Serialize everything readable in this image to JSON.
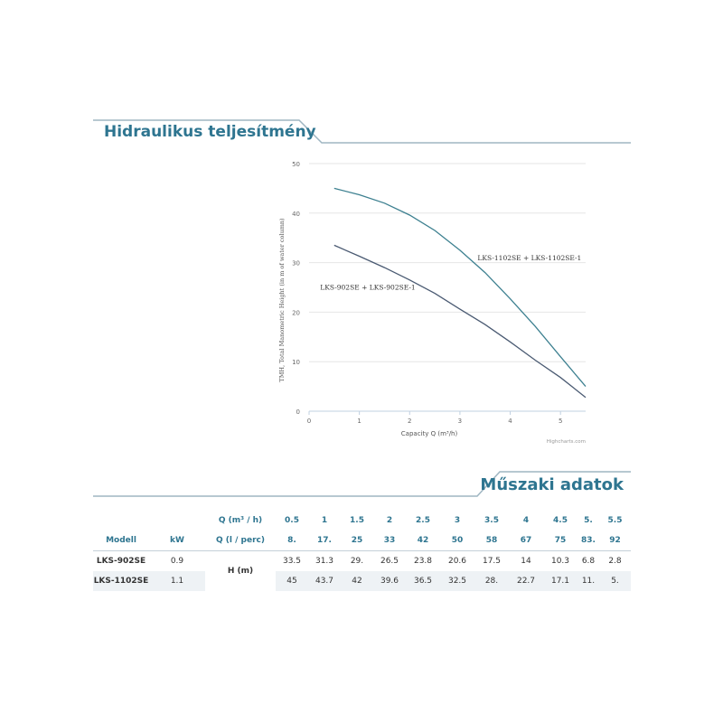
{
  "header": {
    "title": "Hidraulikus teljesítmény"
  },
  "section2": {
    "title": "Műszaki adatok"
  },
  "colors": {
    "accent": "#2e7590",
    "line_a": "#4a5a72",
    "line_b": "#3d8090",
    "band": "#eef2f5"
  },
  "chart_data": {
    "type": "line",
    "title": "",
    "xlabel": "Capacity Q (m³/h)",
    "ylabel": "TMH, Total Manometric Height (in m of water column)",
    "xlim": [
      0,
      5.5
    ],
    "ylim": [
      0,
      50
    ],
    "x_ticks": [
      "0",
      "1",
      "2",
      "3",
      "4",
      "5"
    ],
    "y_ticks": [
      "0",
      "10",
      "20",
      "30",
      "40",
      "50"
    ],
    "grid": true,
    "credit": "Highcharts.com",
    "x": [
      0.5,
      1,
      1.5,
      2,
      2.5,
      3,
      3.5,
      4,
      4.5,
      5,
      5.5
    ],
    "series": [
      {
        "name": "LKS-1102SE + LKS-1102SE-1",
        "values": [
          45,
          43.7,
          42,
          39.6,
          36.5,
          32.5,
          28,
          22.7,
          17.1,
          11,
          5
        ]
      },
      {
        "name": "LKS-902SE + LKS-902SE-1",
        "values": [
          33.5,
          31.3,
          29,
          26.5,
          23.8,
          20.6,
          17.5,
          14,
          10.3,
          6.8,
          2.8
        ]
      }
    ]
  },
  "table": {
    "hdr_q_m3": "Q (m³ / h)",
    "hdr_q_l": "Q (l / perc)",
    "hdr_model": "Modell",
    "hdr_kw": "kW",
    "hdr_h": "H (m)",
    "q_m3": [
      "0.5",
      "1",
      "1.5",
      "2",
      "2.5",
      "3",
      "3.5",
      "4",
      "4.5",
      "5.",
      "5.5"
    ],
    "q_l": [
      "8.",
      "17.",
      "25",
      "33",
      "42",
      "50",
      "58",
      "67",
      "75",
      "83.",
      "92"
    ],
    "rows": [
      {
        "model": "LKS-902SE",
        "kw": "0.9",
        "h": [
          "33.5",
          "31.3",
          "29.",
          "26.5",
          "23.8",
          "20.6",
          "17.5",
          "14",
          "10.3",
          "6.8",
          "2.8"
        ]
      },
      {
        "model": "LKS-1102SE",
        "kw": "1.1",
        "h": [
          "45",
          "43.7",
          "42",
          "39.6",
          "36.5",
          "32.5",
          "28.",
          "22.7",
          "17.1",
          "11.",
          "5."
        ]
      }
    ]
  }
}
